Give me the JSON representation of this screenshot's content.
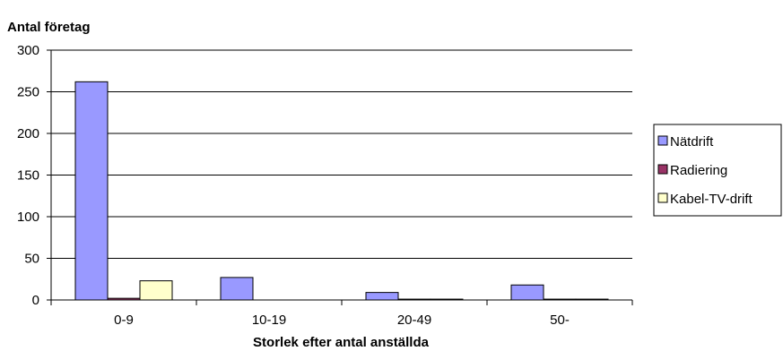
{
  "chart_data": {
    "type": "bar",
    "ylabel": "Antal företag",
    "xlabel": "Storlek efter antal anställda",
    "categories": [
      "0-9",
      "10-19",
      "20-49",
      "50-"
    ],
    "series": [
      {
        "name": "Nätdrift",
        "color": "#9999ff",
        "values": [
          262,
          27,
          9,
          18
        ]
      },
      {
        "name": "Radiering",
        "color": "#993366",
        "values": [
          2,
          0,
          1,
          1
        ]
      },
      {
        "name": "Kabel-TV-drift",
        "color": "#ffffcc",
        "values": [
          23,
          0,
          1,
          1
        ]
      }
    ],
    "ylim": [
      0,
      300
    ],
    "yticks": [
      "0",
      "50",
      "100",
      "150",
      "200",
      "250",
      "300"
    ],
    "grid": true,
    "legend": "right"
  }
}
